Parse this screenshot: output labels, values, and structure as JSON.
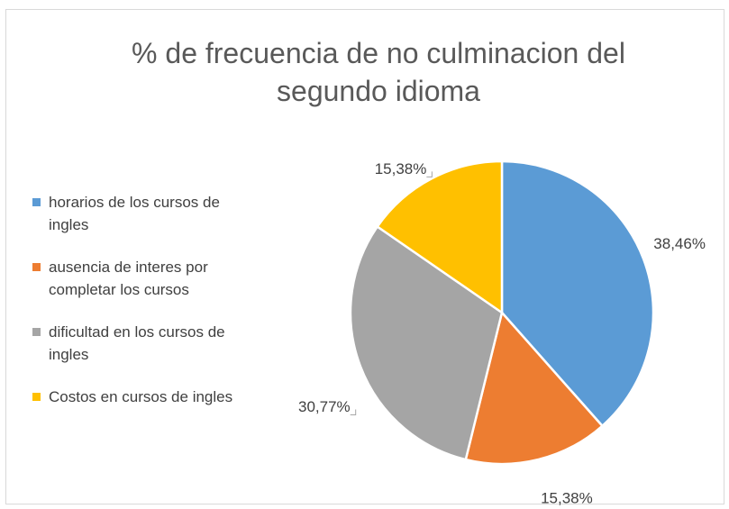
{
  "chart_data": {
    "type": "pie",
    "title": "% de frecuencia de no culminacion del segundo idioma",
    "categories": [
      "horarios de los cursos de ingles",
      "ausencia de interes por completar los cursos",
      "dificultad en los cursos de ingles",
      "Costos en cursos de ingles"
    ],
    "values": [
      38.46,
      15.38,
      30.77,
      15.38
    ],
    "value_labels": [
      "38,46%",
      "15,38%",
      "30,77%",
      "15,38%"
    ],
    "colors": [
      "#5b9bd5",
      "#ed7d31",
      "#a5a5a5",
      "#ffc000"
    ],
    "legend": "left"
  }
}
